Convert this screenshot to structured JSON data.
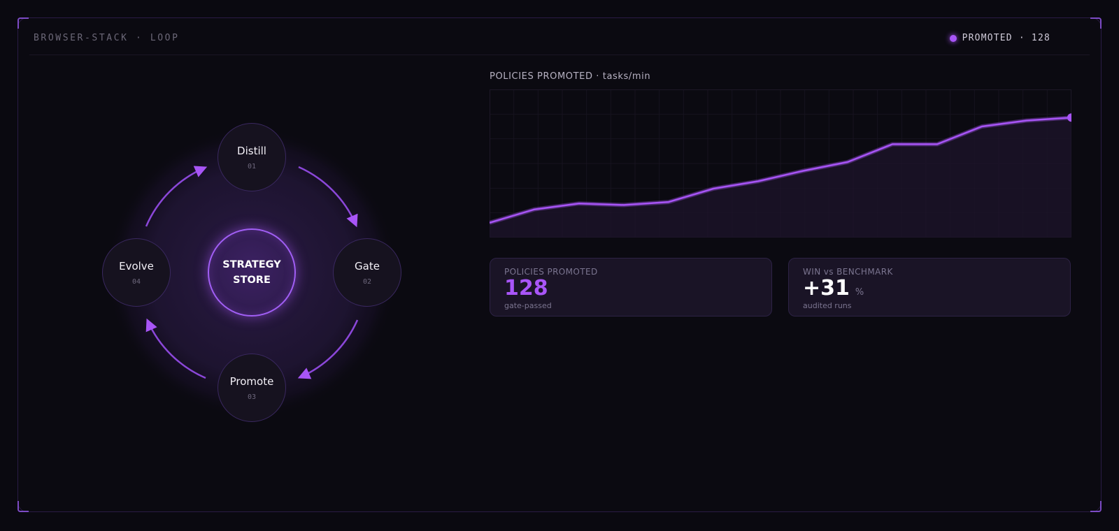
{
  "header": {
    "brand": "BROWSER-STACK · LOOP",
    "status": "PROMOTED · 128"
  },
  "loop": {
    "center": {
      "line1": "STRATEGY",
      "line2": "STORE"
    },
    "steps": [
      {
        "label": "Distill",
        "number": "01"
      },
      {
        "label": "Gate",
        "number": "02"
      },
      {
        "label": "Promote",
        "number": "03"
      },
      {
        "label": "Evolve",
        "number": "04"
      }
    ]
  },
  "chart_data": {
    "type": "line",
    "title": "POLICIES PROMOTED · tasks/min",
    "xlabel": "",
    "ylabel": "",
    "x": [
      1,
      2,
      3,
      4,
      5,
      6,
      7,
      8,
      9,
      10,
      11,
      12,
      13,
      14
    ],
    "values": [
      10,
      19,
      23,
      22,
      24,
      33,
      38,
      45,
      51,
      63,
      63,
      75,
      79,
      81
    ],
    "ylim": [
      0,
      100
    ],
    "grid": true,
    "color": "#a855f7"
  },
  "cards": [
    {
      "label": "POLICIES PROMOTED",
      "value": "128",
      "unit": "",
      "sub": "gate-passed",
      "color": "#a855f7"
    },
    {
      "label": "WIN vs BENCHMARK",
      "value": "+31",
      "unit": "%",
      "sub": "audited runs",
      "color": "#ffffff"
    }
  ],
  "colors": {
    "accent": "#a855f7",
    "background": "#0b0a11"
  }
}
